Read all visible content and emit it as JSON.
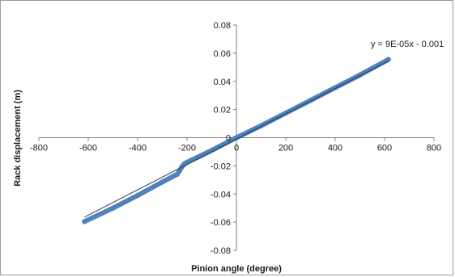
{
  "chart_data": {
    "type": "scatter",
    "title": "",
    "xlabel": "Pinion angle (degree)",
    "ylabel": "Rack displacement (m)",
    "xlim": [
      -800,
      800
    ],
    "ylim": [
      -0.08,
      0.08
    ],
    "x_ticks": [
      -800,
      -600,
      -400,
      -200,
      0,
      200,
      400,
      600,
      800
    ],
    "y_ticks": [
      -0.08,
      -0.06,
      -0.04,
      -0.02,
      0,
      0.02,
      0.04,
      0.06,
      0.08
    ],
    "x_tick_labels": [
      "-800",
      "-600",
      "-400",
      "-200",
      "0",
      "200",
      "400",
      "600",
      "800"
    ],
    "y_tick_labels": [
      "-0.08",
      "-0.06",
      "-0.04",
      "-0.02",
      "0",
      "0.02",
      "0.04",
      "0.06",
      "0.08"
    ],
    "trendline_label": "y = 9E-05x - 0.001",
    "grid": false,
    "legend": "none",
    "series": [
      {
        "color": "#4f81bd",
        "x": [
          -615,
          -500,
          -400,
          -300,
          -240,
          -230,
          -220,
          -210,
          -200,
          -100,
          0,
          100,
          200,
          300,
          400,
          500,
          615
        ],
        "y": [
          -0.0595,
          -0.05,
          -0.041,
          -0.0315,
          -0.026,
          -0.0235,
          -0.0205,
          -0.0185,
          -0.0175,
          -0.009,
          0.0,
          0.0085,
          0.0175,
          0.0265,
          0.0355,
          0.0445,
          0.0555
        ]
      }
    ],
    "trendline": {
      "slope": 9e-05,
      "intercept": -0.001,
      "x_range": [
        -615,
        615
      ],
      "color": "#2c3e50"
    }
  }
}
